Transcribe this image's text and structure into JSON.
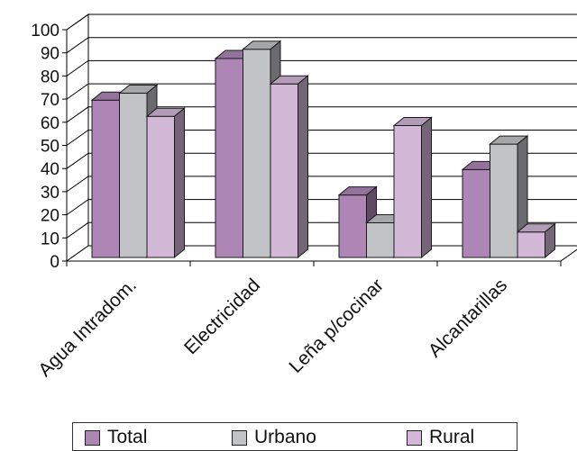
{
  "chart_data": {
    "type": "bar",
    "title": "",
    "xlabel": "",
    "ylabel": "",
    "categories": [
      "Agua Intradom.",
      "Electricidad",
      "Leña p/cocinar",
      "Alcantarillas"
    ],
    "series": [
      {
        "name": "Total",
        "values": [
          68,
          86,
          27,
          38
        ]
      },
      {
        "name": "Urbano",
        "values": [
          71,
          90,
          15,
          49
        ]
      },
      {
        "name": "Rural",
        "values": [
          61,
          75,
          57,
          11
        ]
      }
    ],
    "ylim": [
      0,
      100
    ],
    "yticks": [
      "0",
      "10",
      "20",
      "30",
      "40",
      "50",
      "60",
      "70",
      "80",
      "90",
      "100"
    ],
    "grid": true,
    "legend_position": "bottom",
    "colors": {
      "Total": "#ad86b6",
      "Urbano": "#c2c3c6",
      "Rural": "#d3b8d8"
    }
  }
}
